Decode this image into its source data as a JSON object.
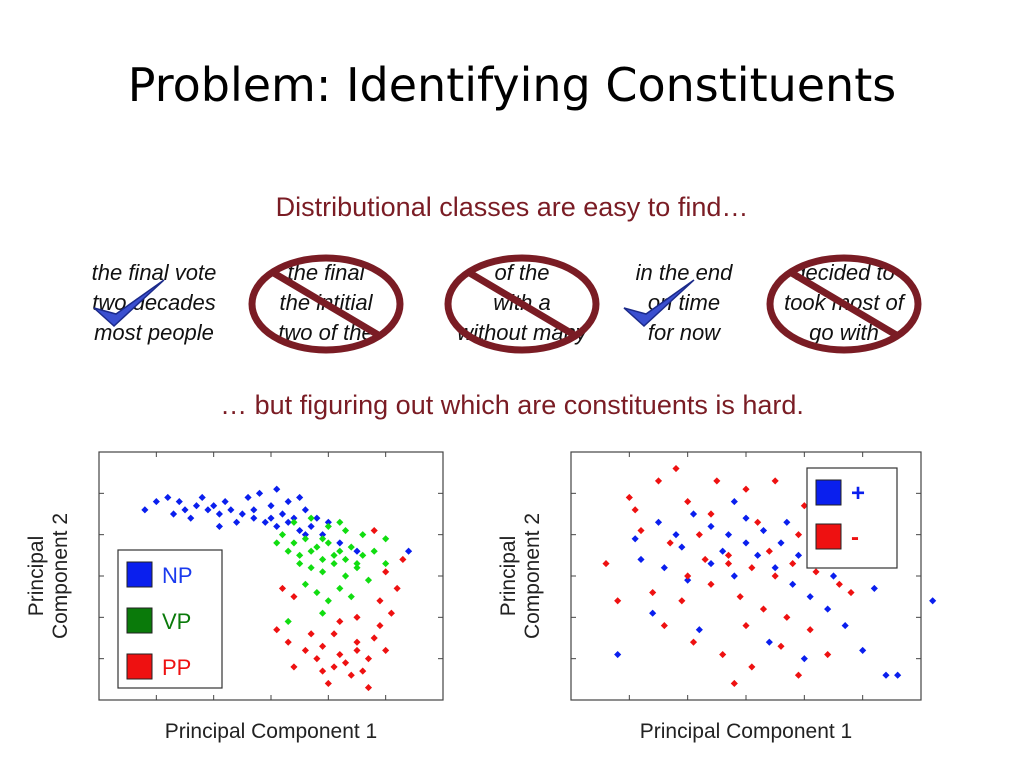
{
  "title": "Problem:  Identifying Constituents",
  "subtitle_top": "Distributional classes are easy to find…",
  "subtitle_bottom": "… but figuring out which are constituents is hard.",
  "colors": {
    "subtitle": "#7a1c24",
    "ring": "#7a1c24",
    "check": "#3a4fd0",
    "np": "#0a1fee",
    "vp": "#11dd11",
    "vp_legend": "#0a7a0a",
    "pp": "#ee1111"
  },
  "phrase_groups": [
    {
      "lines": [
        "the final vote",
        "two decades",
        "most people"
      ],
      "mark": "check"
    },
    {
      "lines": [
        "the final",
        "the intitial",
        "two of the"
      ],
      "mark": "crossed-circle"
    },
    {
      "lines": [
        "of the",
        "with a",
        "without many"
      ],
      "mark": "crossed-circle"
    },
    {
      "lines": [
        "in the end",
        "on time",
        "for now"
      ],
      "mark": "check"
    },
    {
      "lines": [
        "decided to",
        "took most of",
        "go with"
      ],
      "mark": "crossed-circle"
    }
  ],
  "chart_data": [
    {
      "type": "scatter",
      "title": "",
      "xlabel": "Principal Component 1",
      "ylabel": "Principal Component 2",
      "xlim": [
        -3,
        3
      ],
      "ylim": [
        -3,
        3
      ],
      "legend_position": "bottom-left",
      "legend": [
        {
          "label": "NP",
          "color": "#0a1fee",
          "text_color": "#1a3aee"
        },
        {
          "label": "VP",
          "color": "#0a7a0a",
          "text_color": "#0a7a0a"
        },
        {
          "label": "PP",
          "color": "#ee1111",
          "text_color": "#ee1111"
        }
      ],
      "series": [
        {
          "name": "NP",
          "color": "#0a1fee",
          "points": [
            [
              -2.0,
              1.8
            ],
            [
              -1.8,
              1.9
            ],
            [
              -1.6,
              1.8
            ],
            [
              -1.5,
              1.6
            ],
            [
              -1.3,
              1.7
            ],
            [
              -1.1,
              1.6
            ],
            [
              -0.9,
              1.5
            ],
            [
              -0.7,
              1.6
            ],
            [
              -0.5,
              1.5
            ],
            [
              -0.3,
              1.4
            ],
            [
              -0.1,
              1.3
            ],
            [
              0.1,
              1.2
            ],
            [
              0.3,
              1.3
            ],
            [
              0.5,
              1.1
            ],
            [
              0.7,
              1.2
            ],
            [
              0.9,
              1.0
            ],
            [
              -1.2,
              1.9
            ],
            [
              -0.8,
              1.8
            ],
            [
              -0.4,
              1.9
            ],
            [
              -0.2,
              2.0
            ],
            [
              0.0,
              1.7
            ],
            [
              0.2,
              1.5
            ],
            [
              0.4,
              1.4
            ],
            [
              0.6,
              1.6
            ],
            [
              0.8,
              1.4
            ],
            [
              1.0,
              1.3
            ],
            [
              -1.7,
              1.5
            ],
            [
              -1.4,
              1.4
            ],
            [
              -0.6,
              1.3
            ],
            [
              0.1,
              2.1
            ],
            [
              0.3,
              1.8
            ],
            [
              0.5,
              1.9
            ],
            [
              -2.2,
              1.6
            ],
            [
              -0.9,
              1.2
            ],
            [
              -0.3,
              1.6
            ],
            [
              1.2,
              0.8
            ],
            [
              1.5,
              0.6
            ],
            [
              0.0,
              1.4
            ],
            [
              0.6,
              1.0
            ],
            [
              -1.0,
              1.7
            ],
            [
              -2.5,
              0.2
            ],
            [
              2.4,
              0.6
            ]
          ]
        },
        {
          "name": "VP",
          "color": "#11dd11",
          "points": [
            [
              0.2,
              1.0
            ],
            [
              0.4,
              0.8
            ],
            [
              0.6,
              0.9
            ],
            [
              0.8,
              0.7
            ],
            [
              1.0,
              0.8
            ],
            [
              1.2,
              0.6
            ],
            [
              1.4,
              0.7
            ],
            [
              1.6,
              0.5
            ],
            [
              1.8,
              0.6
            ],
            [
              0.5,
              0.3
            ],
            [
              0.7,
              0.2
            ],
            [
              0.9,
              0.1
            ],
            [
              1.1,
              0.3
            ],
            [
              1.3,
              0.0
            ],
            [
              1.5,
              0.2
            ],
            [
              1.7,
              -0.1
            ],
            [
              0.3,
              0.6
            ],
            [
              0.5,
              0.5
            ],
            [
              0.7,
              0.6
            ],
            [
              0.9,
              0.4
            ],
            [
              1.1,
              0.5
            ],
            [
              1.3,
              0.4
            ],
            [
              1.5,
              0.3
            ],
            [
              0.6,
              -0.2
            ],
            [
              0.8,
              -0.4
            ],
            [
              1.0,
              -0.6
            ],
            [
              1.2,
              -0.3
            ],
            [
              0.4,
              1.3
            ],
            [
              0.7,
              1.4
            ],
            [
              1.0,
              1.2
            ],
            [
              1.3,
              1.1
            ],
            [
              1.6,
              1.0
            ],
            [
              2.0,
              0.9
            ],
            [
              0.9,
              -0.9
            ],
            [
              0.3,
              -1.1
            ],
            [
              1.4,
              -0.5
            ],
            [
              2.0,
              0.3
            ],
            [
              0.1,
              0.8
            ],
            [
              0.9,
              0.9
            ],
            [
              1.2,
              1.3
            ]
          ]
        },
        {
          "name": "PP",
          "color": "#ee1111",
          "points": [
            [
              0.2,
              -0.3
            ],
            [
              0.4,
              -0.5
            ],
            [
              0.1,
              -1.3
            ],
            [
              0.3,
              -1.6
            ],
            [
              0.6,
              -1.8
            ],
            [
              0.9,
              -1.7
            ],
            [
              1.2,
              -1.9
            ],
            [
              1.5,
              -1.6
            ],
            [
              1.8,
              -1.5
            ],
            [
              1.1,
              -2.2
            ],
            [
              1.4,
              -2.4
            ],
            [
              1.7,
              -2.0
            ],
            [
              2.0,
              -1.8
            ],
            [
              0.8,
              -2.0
            ],
            [
              1.0,
              -2.6
            ],
            [
              1.3,
              -2.1
            ],
            [
              1.6,
              -2.3
            ],
            [
              1.9,
              -1.2
            ],
            [
              2.1,
              -0.9
            ],
            [
              2.2,
              -0.3
            ],
            [
              2.0,
              0.1
            ],
            [
              1.5,
              -1.0
            ],
            [
              0.7,
              -1.4
            ],
            [
              0.4,
              -2.2
            ],
            [
              1.1,
              -1.4
            ],
            [
              1.7,
              -2.7
            ],
            [
              1.9,
              -0.6
            ],
            [
              1.2,
              -1.1
            ],
            [
              0.9,
              -2.3
            ],
            [
              1.5,
              -1.8
            ],
            [
              2.3,
              0.4
            ],
            [
              1.8,
              1.1
            ]
          ]
        }
      ]
    },
    {
      "type": "scatter",
      "title": "",
      "xlabel": "Principal Component 1",
      "ylabel": "Principal Component 2",
      "xlim": [
        -3,
        3
      ],
      "ylim": [
        -3,
        3
      ],
      "legend_position": "top-right",
      "legend": [
        {
          "label": "+",
          "color": "#0a1fee",
          "text_color": "#0a1fee"
        },
        {
          "label": "-",
          "color": "#ee1111",
          "text_color": "#ee1111"
        }
      ],
      "series": [
        {
          "name": "+",
          "color": "#0a1fee",
          "points": [
            [
              -1.5,
              1.3
            ],
            [
              -1.2,
              1.0
            ],
            [
              -0.9,
              1.5
            ],
            [
              -0.6,
              1.2
            ],
            [
              -0.3,
              1.0
            ],
            [
              0.0,
              1.4
            ],
            [
              0.3,
              1.1
            ],
            [
              0.6,
              0.8
            ],
            [
              0.9,
              0.5
            ],
            [
              1.2,
              0.3
            ],
            [
              1.5,
              0.0
            ],
            [
              -1.8,
              0.4
            ],
            [
              -1.4,
              0.2
            ],
            [
              -1.0,
              -0.1
            ],
            [
              -0.6,
              0.3
            ],
            [
              -0.2,
              0.0
            ],
            [
              0.2,
              0.5
            ],
            [
              0.5,
              0.2
            ],
            [
              0.8,
              -0.2
            ],
            [
              1.1,
              -0.5
            ],
            [
              1.4,
              -0.8
            ],
            [
              1.7,
              -1.2
            ],
            [
              2.0,
              -1.8
            ],
            [
              2.4,
              -2.4
            ],
            [
              2.2,
              -0.3
            ],
            [
              -2.2,
              -1.9
            ],
            [
              -1.6,
              -0.9
            ],
            [
              -0.8,
              -1.3
            ],
            [
              0.4,
              -1.6
            ],
            [
              1.0,
              -2.0
            ],
            [
              0.0,
              0.8
            ],
            [
              -0.4,
              0.6
            ],
            [
              0.7,
              1.3
            ],
            [
              1.3,
              0.9
            ],
            [
              -1.1,
              0.7
            ],
            [
              -0.2,
              1.8
            ],
            [
              3.2,
              -0.6
            ],
            [
              2.6,
              -2.4
            ],
            [
              -1.9,
              0.9
            ],
            [
              1.6,
              0.6
            ]
          ]
        },
        {
          "name": "-",
          "color": "#ee1111",
          "points": [
            [
              -2.0,
              1.9
            ],
            [
              -1.5,
              2.3
            ],
            [
              -1.0,
              1.8
            ],
            [
              -0.5,
              2.3
            ],
            [
              0.0,
              2.1
            ],
            [
              0.5,
              2.3
            ],
            [
              1.0,
              1.7
            ],
            [
              1.5,
              1.4
            ],
            [
              -1.8,
              1.1
            ],
            [
              -1.3,
              0.8
            ],
            [
              -0.8,
              1.0
            ],
            [
              -0.3,
              0.5
            ],
            [
              0.1,
              0.2
            ],
            [
              0.4,
              0.6
            ],
            [
              0.8,
              0.3
            ],
            [
              1.2,
              0.1
            ],
            [
              -1.6,
              -0.4
            ],
            [
              -1.1,
              -0.6
            ],
            [
              -0.6,
              -0.2
            ],
            [
              -0.1,
              -0.5
            ],
            [
              0.3,
              -0.8
            ],
            [
              0.7,
              -1.0
            ],
            [
              1.1,
              -1.3
            ],
            [
              -1.4,
              -1.2
            ],
            [
              -0.9,
              -1.6
            ],
            [
              -0.4,
              -1.9
            ],
            [
              0.1,
              -2.2
            ],
            [
              0.6,
              -1.7
            ],
            [
              -2.4,
              0.3
            ],
            [
              -2.2,
              -0.6
            ],
            [
              1.8,
              -0.4
            ],
            [
              2.1,
              0.5
            ],
            [
              -0.2,
              -2.6
            ],
            [
              0.9,
              -2.4
            ],
            [
              1.4,
              -1.9
            ],
            [
              -0.6,
              1.5
            ],
            [
              0.2,
              1.3
            ],
            [
              -1.2,
              2.6
            ],
            [
              2.5,
              2.1
            ],
            [
              1.9,
              1.2
            ],
            [
              -0.3,
              0.3
            ],
            [
              0.5,
              0.0
            ],
            [
              -0.7,
              0.4
            ],
            [
              0.0,
              -1.2
            ],
            [
              -1.9,
              1.6
            ],
            [
              0.9,
              1.0
            ],
            [
              1.6,
              -0.2
            ],
            [
              -1.0,
              0.0
            ]
          ]
        }
      ]
    }
  ]
}
